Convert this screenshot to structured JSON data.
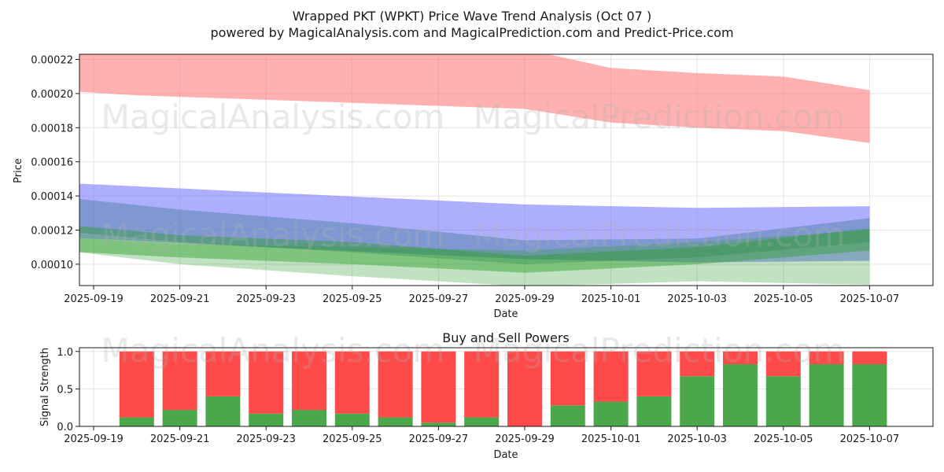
{
  "header": {
    "title": "Wrapped PKT (WPKT) Price Wave Trend Analysis (Oct 07 )",
    "subtitle": "powered by MagicalAnalysis.com and MagicalPrediction.com and Predict-Price.com"
  },
  "watermarks": {
    "site1": "MagicalAnalysis.com",
    "site2": "MagicalPrediction.com"
  },
  "colors": {
    "red_band": "#ff6f6f",
    "blue_band": "#6b6bff",
    "green_band": "#2f9e2f",
    "teal_band": "#2a6f7a",
    "buy": "#4aa84a",
    "sell": "#ff4a4a",
    "grid": "#e3e3e3"
  },
  "chart_data": [
    {
      "type": "area",
      "title": "",
      "xlabel": "Date",
      "ylabel": "Price",
      "ylim": [
        8.75e-05,
        0.000223
      ],
      "x_ticks": [
        "2025-09-19",
        "2025-09-21",
        "2025-09-23",
        "2025-09-25",
        "2025-09-27",
        "2025-09-29",
        "2025-10-01",
        "2025-10-03",
        "2025-10-05",
        "2025-10-07"
      ],
      "y_ticks": [
        "0.00010",
        "0.00012",
        "0.00014",
        "0.00016",
        "0.00018",
        "0.00020",
        "0.00022"
      ],
      "y_tick_values": [
        0.0001,
        0.00012,
        0.00014,
        0.00016,
        0.00018,
        0.0002,
        0.00022
      ],
      "grid": true,
      "bands": [
        {
          "name": "red_wave",
          "color_key": "red_band",
          "opacity": 0.55,
          "x": [
            "2025-09-18",
            "2025-09-20",
            "2025-09-29",
            "2025-10-01",
            "2025-10-03",
            "2025-10-05",
            "2025-10-07"
          ],
          "upper": [
            0.000226,
            0.000226,
            0.000226,
            0.000215,
            0.000212,
            0.00021,
            0.000202
          ],
          "lower": [
            0.000202,
            0.000199,
            0.000191,
            0.000183,
            0.00018,
            0.000178,
            0.000171
          ]
        },
        {
          "name": "blue_wave",
          "color_key": "blue_band",
          "opacity": 0.55,
          "x": [
            "2025-09-18",
            "2025-09-23",
            "2025-09-29",
            "2025-10-03",
            "2025-10-07"
          ],
          "upper": [
            0.000148,
            0.000142,
            0.000135,
            0.000133,
            0.000134
          ],
          "lower": [
            0.000116,
            0.00011,
            0.000103,
            0.000101,
            0.000102
          ]
        },
        {
          "name": "teal_wave",
          "color_key": "teal_band",
          "opacity": 0.35,
          "x": [
            "2025-09-18",
            "2025-09-21",
            "2025-09-25",
            "2025-09-29",
            "2025-10-03",
            "2025-10-07"
          ],
          "upper": [
            0.00014,
            0.000132,
            0.000124,
            0.000114,
            0.000115,
            0.000127
          ],
          "lower": [
            0.00012,
            0.000113,
            0.000107,
            0.0001,
            0.000104,
            0.000113
          ]
        },
        {
          "name": "green_wave_wide",
          "color_key": "green_band",
          "opacity": 0.3,
          "x": [
            "2025-09-18",
            "2025-09-21",
            "2025-09-25",
            "2025-09-29",
            "2025-10-03",
            "2025-10-07"
          ],
          "upper": [
            0.000116,
            0.000112,
            0.00011,
            0.000108,
            0.000113,
            0.00012
          ],
          "lower": [
            0.000109,
            0.0001,
            9.3e-05,
            8.7e-05,
            9e-05,
            8.8e-05
          ]
        },
        {
          "name": "green_wave_core",
          "color_key": "green_band",
          "opacity": 0.45,
          "x": [
            "2025-09-18",
            "2025-09-21",
            "2025-09-25",
            "2025-09-29",
            "2025-10-03",
            "2025-10-07"
          ],
          "upper": [
            0.000124,
            0.000117,
            0.000113,
            0.000105,
            0.00011,
            0.000121
          ],
          "lower": [
            0.000108,
            0.000104,
            0.0001,
            9.5e-05,
            0.0001,
            0.000108
          ]
        }
      ]
    },
    {
      "type": "bar",
      "title": "Buy and Sell Powers",
      "xlabel": "Date",
      "ylabel": "Signal Strength",
      "ylim": [
        0,
        1.05
      ],
      "y_ticks": [
        "0.0",
        "0.5",
        "1.0"
      ],
      "y_tick_values": [
        0.0,
        0.5,
        1.0
      ],
      "x_ticks": [
        "2025-09-19",
        "2025-09-21",
        "2025-09-23",
        "2025-09-25",
        "2025-09-27",
        "2025-09-29",
        "2025-10-01",
        "2025-10-03",
        "2025-10-05",
        "2025-10-07"
      ],
      "categories": [
        "2025-09-20",
        "2025-09-21",
        "2025-09-22",
        "2025-09-23",
        "2025-09-24",
        "2025-09-25",
        "2025-09-26",
        "2025-09-27",
        "2025-09-28",
        "2025-09-29",
        "2025-09-30",
        "2025-10-01",
        "2025-10-02",
        "2025-10-03",
        "2025-10-04",
        "2025-10-05",
        "2025-10-06",
        "2025-10-07"
      ],
      "series": [
        {
          "name": "Buy",
          "color_key": "buy",
          "values": [
            0.12,
            0.22,
            0.4,
            0.17,
            0.22,
            0.17,
            0.12,
            0.05,
            0.12,
            0.0,
            0.28,
            0.33,
            0.4,
            0.67,
            0.83,
            0.67,
            0.83,
            0.83
          ]
        },
        {
          "name": "Sell",
          "color_key": "sell",
          "values": [
            0.88,
            0.78,
            0.6,
            0.83,
            0.78,
            0.83,
            0.88,
            0.95,
            0.88,
            1.0,
            0.72,
            0.67,
            0.6,
            0.33,
            0.17,
            0.33,
            0.17,
            0.17
          ]
        }
      ]
    }
  ]
}
